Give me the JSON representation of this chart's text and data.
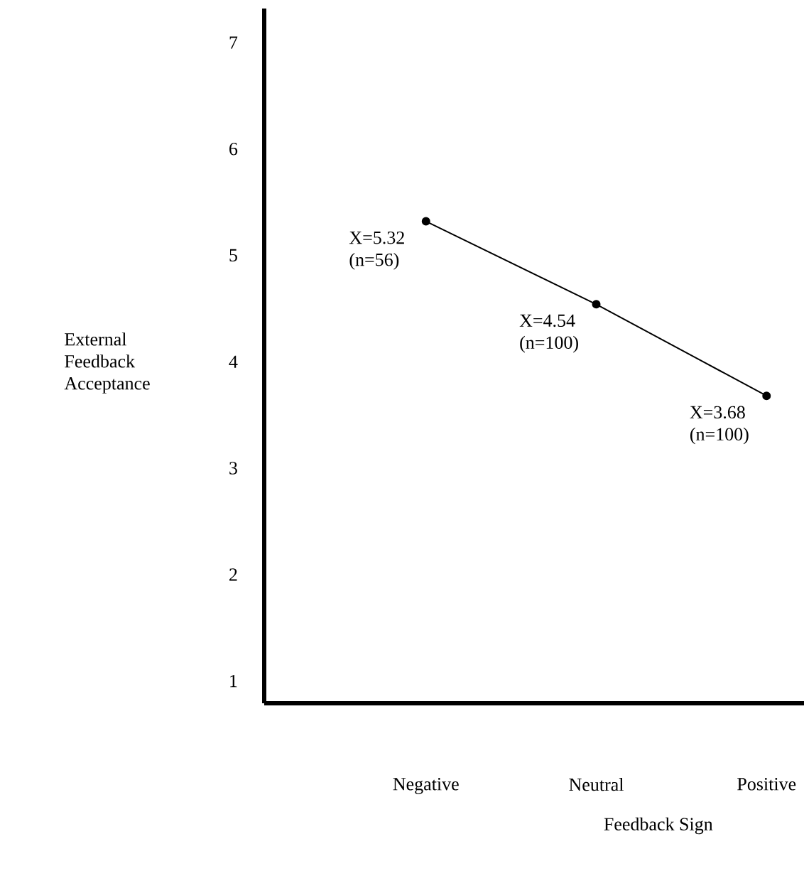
{
  "chart_data": {
    "type": "line",
    "xlabel": "Feedback Sign",
    "ylabel": "External Feedback Acceptance",
    "categories": [
      "Negative",
      "Neutral",
      "Positive"
    ],
    "values": [
      5.32,
      4.54,
      3.68
    ],
    "value_labels": [
      "X=5.32 (n=56)",
      "X=4.54 (n=100)",
      "X=3.68 (n=100)"
    ],
    "color": "#000000",
    "marker": "circle",
    "line_style": "solid",
    "ylim": [
      0.79,
      7.32
    ],
    "yticks": [
      1,
      2,
      3,
      4,
      5,
      6,
      7
    ]
  }
}
